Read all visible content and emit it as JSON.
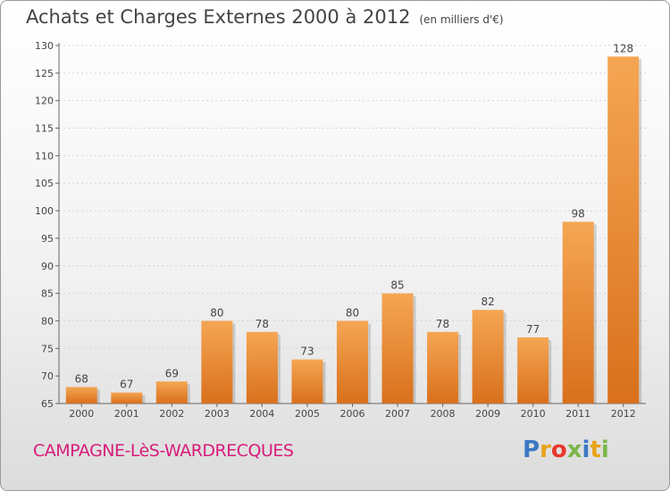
{
  "header": {
    "title": "Achats et Charges Externes 2000 à 2012",
    "unit": "(en milliers d'€)"
  },
  "footer": {
    "place": "CAMPAGNE-LèS-WARDRECQUES",
    "logo_letters": [
      "P",
      "r",
      "o",
      "x",
      "i",
      "t",
      "i"
    ],
    "logo_colors": [
      "#3b78c4",
      "#e8a317",
      "#e8372b",
      "#7ab648",
      "#3b78c4",
      "#e8a317",
      "#7ab648"
    ]
  },
  "chart_data": {
    "type": "bar",
    "categories": [
      "2000",
      "2001",
      "2002",
      "2003",
      "2004",
      "2005",
      "2006",
      "2007",
      "2008",
      "2009",
      "2010",
      "2011",
      "2012"
    ],
    "values": [
      68,
      67,
      69,
      80,
      78,
      73,
      80,
      85,
      78,
      82,
      77,
      98,
      128
    ],
    "ylim": [
      65,
      130
    ],
    "yticks": [
      65,
      70,
      75,
      80,
      85,
      90,
      95,
      100,
      105,
      110,
      115,
      120,
      125,
      130
    ],
    "bar_color_light": "#f5a653",
    "bar_color_dark": "#d9701c",
    "grid": true
  }
}
